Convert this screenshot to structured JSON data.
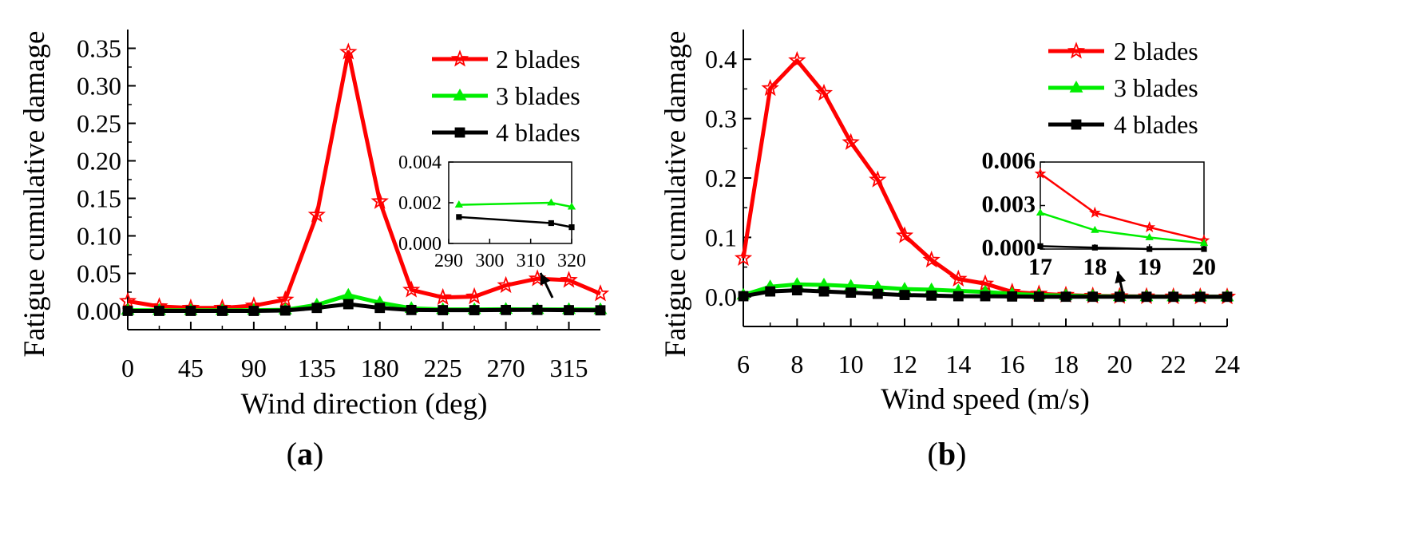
{
  "chart_data": [
    {
      "type": "line",
      "panel": "a",
      "panel_label": {
        "open": "(",
        "letter": "a",
        "close": ")"
      },
      "xlabel": "Wind direction (deg)",
      "ylabel": "Fatigue cumulative damage",
      "xlim": [
        0,
        337.5
      ],
      "ylim": [
        -0.025,
        0.375
      ],
      "xticks": [
        0,
        45,
        90,
        135,
        180,
        225,
        270,
        315
      ],
      "xtick_labels": [
        "0",
        "45",
        "90",
        "135",
        "180",
        "225",
        "270",
        "315"
      ],
      "yticks": [
        0.0,
        0.05,
        0.1,
        0.15,
        0.2,
        0.25,
        0.3,
        0.35
      ],
      "ytick_labels": [
        "0.00",
        "0.05",
        "0.10",
        "0.15",
        "0.20",
        "0.25",
        "0.30",
        "0.35"
      ],
      "x": [
        0,
        22.5,
        45,
        67.5,
        90,
        112.5,
        135,
        157.5,
        180,
        202.5,
        225,
        247.5,
        270,
        292.5,
        315,
        337.5
      ],
      "series": [
        {
          "name": "2 blades",
          "color": "#ff0000",
          "marker": "star",
          "values": [
            0.013,
            0.006,
            0.004,
            0.004,
            0.007,
            0.015,
            0.128,
            0.345,
            0.146,
            0.028,
            0.018,
            0.019,
            0.034,
            0.043,
            0.041,
            0.023
          ]
        },
        {
          "name": "3 blades",
          "color": "#00ee00",
          "marker": "triangle",
          "values": [
            0.001,
            0.0008,
            0.0008,
            0.0008,
            0.001,
            0.0015,
            0.008,
            0.021,
            0.011,
            0.0035,
            0.002,
            0.002,
            0.0022,
            0.002,
            0.002,
            0.0018
          ]
        },
        {
          "name": "4 blades",
          "color": "#000000",
          "marker": "square",
          "values": [
            0.0,
            0.0,
            0.0,
            0.0,
            0.0,
            0.0005,
            0.004,
            0.009,
            0.004,
            0.0012,
            0.001,
            0.001,
            0.0012,
            0.0013,
            0.001,
            0.0008
          ]
        }
      ],
      "inset": {
        "xlim": [
          290,
          320
        ],
        "ylim": [
          0.0,
          0.004
        ],
        "xticks": [
          290,
          300,
          310,
          320
        ],
        "xtick_labels": [
          "290",
          "300",
          "310",
          "320"
        ],
        "yticks": [
          0.0,
          0.002,
          0.004
        ],
        "ytick_labels": [
          "0.000",
          "0.002",
          "0.004"
        ],
        "series": [
          {
            "name": "3 blades",
            "color": "#00ee00",
            "marker": "triangle",
            "x": [
              292.5,
              315,
              320
            ],
            "values": [
              0.0019,
              0.002,
              0.0018
            ]
          },
          {
            "name": "4 blades",
            "color": "#000000",
            "marker": "square",
            "x": [
              292.5,
              315,
              320
            ],
            "values": [
              0.0013,
              0.001,
              0.0008
            ]
          }
        ]
      }
    },
    {
      "type": "line",
      "panel": "b",
      "panel_label": {
        "open": "(",
        "letter": "b",
        "close": ")"
      },
      "xlabel": "Wind speed (m/s)",
      "ylabel": "Fatigue cumulative damage",
      "xlim": [
        6,
        24
      ],
      "ylim": [
        -0.05,
        0.45
      ],
      "xticks": [
        6,
        8,
        10,
        12,
        14,
        16,
        18,
        20,
        22,
        24
      ],
      "xtick_labels": [
        "6",
        "8",
        "10",
        "12",
        "14",
        "16",
        "18",
        "20",
        "22",
        "24"
      ],
      "yticks": [
        0.0,
        0.1,
        0.2,
        0.3,
        0.4
      ],
      "ytick_labels": [
        "0.0",
        "0.1",
        "0.2",
        "0.3",
        "0.4"
      ],
      "x": [
        6,
        7,
        8,
        9,
        10,
        11,
        12,
        13,
        14,
        15,
        16,
        17,
        18,
        19,
        20,
        21,
        22,
        23,
        24
      ],
      "series": [
        {
          "name": "2 blades",
          "color": "#ff0000",
          "marker": "star",
          "values": [
            0.065,
            0.351,
            0.398,
            0.343,
            0.26,
            0.197,
            0.103,
            0.062,
            0.03,
            0.022,
            0.008,
            0.005,
            0.003,
            0.0015,
            0.0008,
            0.0005,
            0.0003,
            0.0002,
            0.0001
          ]
        },
        {
          "name": "3 blades",
          "color": "#00ee00",
          "marker": "triangle",
          "values": [
            0.003,
            0.017,
            0.021,
            0.02,
            0.018,
            0.016,
            0.013,
            0.012,
            0.01,
            0.008,
            0.005,
            0.003,
            0.002,
            0.001,
            0.0005,
            0.0003,
            0.0002,
            0.0001,
            0.0001
          ]
        },
        {
          "name": "4 blades",
          "color": "#000000",
          "marker": "square",
          "values": [
            0.001,
            0.009,
            0.011,
            0.009,
            0.007,
            0.005,
            0.003,
            0.002,
            0.001,
            0.001,
            0.0005,
            0.0002,
            0.0001,
            0.0001,
            0.0,
            0.0,
            0.0,
            0.0,
            0.0
          ]
        }
      ],
      "inset": {
        "xlim": [
          17,
          20
        ],
        "ylim": [
          0.0,
          0.006
        ],
        "xticks": [
          17,
          18,
          19,
          20
        ],
        "xtick_labels": [
          "17",
          "18",
          "19",
          "20"
        ],
        "yticks": [
          0.0,
          0.003,
          0.006
        ],
        "ytick_labels": [
          "0.000",
          "0.003",
          "0.006"
        ],
        "series": [
          {
            "name": "2 blades",
            "color": "#ff0000",
            "marker": "star",
            "x": [
              17,
              18,
              19,
              20
            ],
            "values": [
              0.0052,
              0.0025,
              0.0015,
              0.0006
            ]
          },
          {
            "name": "3 blades",
            "color": "#00ee00",
            "marker": "triangle",
            "x": [
              17,
              18,
              19,
              20
            ],
            "values": [
              0.0025,
              0.0013,
              0.0008,
              0.0004
            ]
          },
          {
            "name": "4 blades",
            "color": "#000000",
            "marker": "square",
            "x": [
              17,
              18,
              19,
              20
            ],
            "values": [
              0.0002,
              0.0001,
              0.0,
              0.0
            ]
          }
        ]
      }
    }
  ]
}
